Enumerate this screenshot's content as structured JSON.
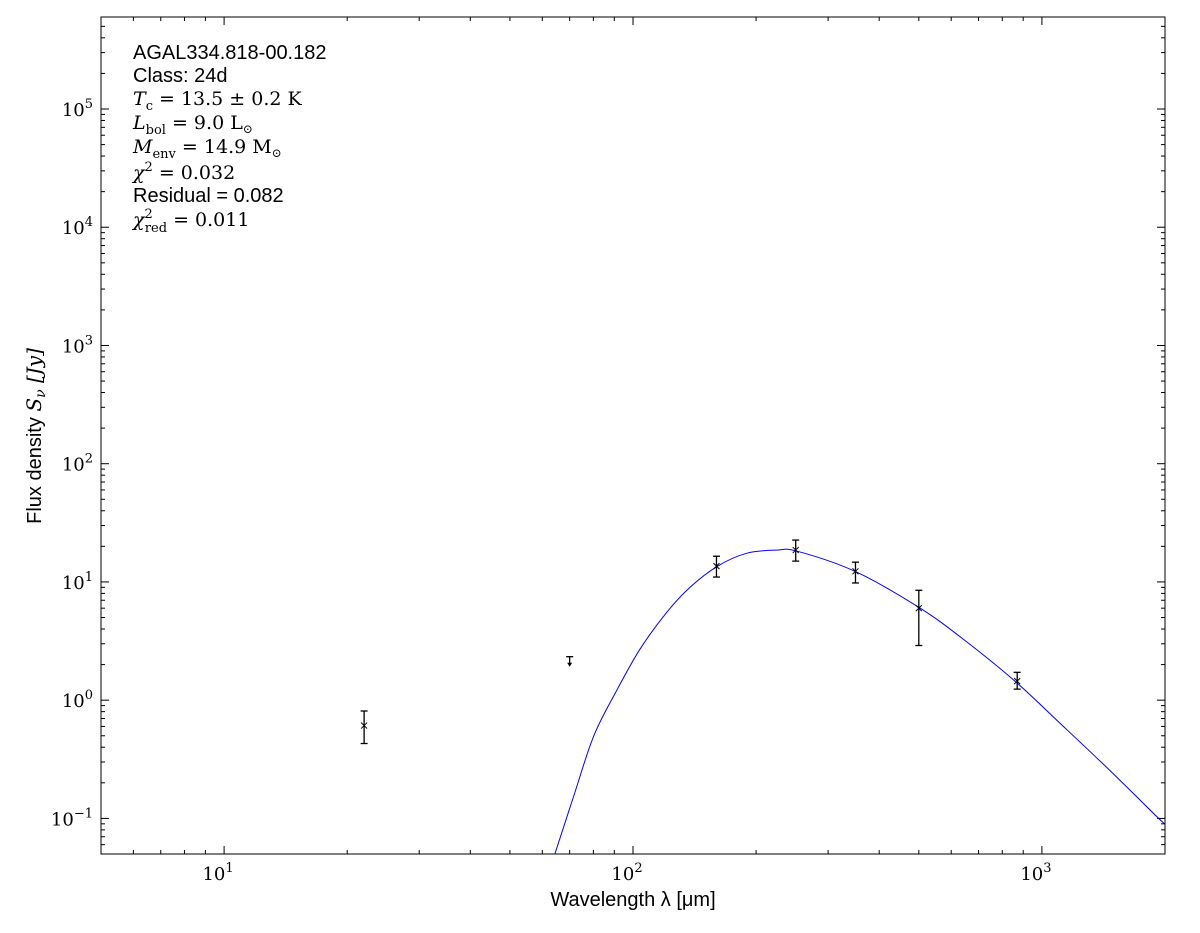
{
  "chart_data": {
    "type": "scatter",
    "xlabel": "Wavelength λ [μm]",
    "ylabel_text": "Flux density ",
    "ylabel_math": "S",
    "ylabel_sub": "ν",
    "ylabel_unit": " [Jy]",
    "x_scale": "log",
    "y_scale": "log",
    "xlim": [
      5,
      2000
    ],
    "ylim": [
      0.05,
      600000
    ],
    "grid": false,
    "x_ticks": [
      {
        "base": "10",
        "exp": "1",
        "value": 10
      },
      {
        "base": "10",
        "exp": "2",
        "value": 100
      },
      {
        "base": "10",
        "exp": "3",
        "value": 1000
      }
    ],
    "y_ticks": [
      {
        "base": "10",
        "exp": "−1",
        "value": 0.1
      },
      {
        "base": "10",
        "exp": "0",
        "value": 1
      },
      {
        "base": "10",
        "exp": "1",
        "value": 10
      },
      {
        "base": "10",
        "exp": "2",
        "value": 100
      },
      {
        "base": "10",
        "exp": "3",
        "value": 1000
      },
      {
        "base": "10",
        "exp": "4",
        "value": 10000
      },
      {
        "base": "10",
        "exp": "5",
        "value": 100000
      }
    ],
    "measurements": [
      {
        "x": 22,
        "y": 0.61,
        "y_low": 0.43,
        "y_high": 0.81
      },
      {
        "x": 160,
        "y": 13.6,
        "y_low": 11.0,
        "y_high": 16.5
      },
      {
        "x": 250,
        "y": 18.6,
        "y_low": 15.0,
        "y_high": 22.6
      },
      {
        "x": 350,
        "y": 12.3,
        "y_low": 9.8,
        "y_high": 14.7
      },
      {
        "x": 500,
        "y": 6.0,
        "y_low": 2.9,
        "y_high": 8.5
      },
      {
        "x": 870,
        "y": 1.45,
        "y_low": 1.24,
        "y_high": 1.72
      }
    ],
    "upper_limits": [
      {
        "x": 70,
        "y": 2.2
      }
    ],
    "model_curve": {
      "color": "#0000ff",
      "x": [
        64.4,
        71.6,
        80.2,
        91.6,
        104,
        121,
        138,
        161,
        190,
        225,
        252,
        349,
        495,
        628,
        859,
        1100,
        1455,
        1960,
        2000
      ],
      "y": [
        0.05,
        0.154,
        0.5,
        1.24,
        2.7,
        5.55,
        9.04,
        13.6,
        17.5,
        18.6,
        18.2,
        12.3,
        6.24,
        3.48,
        1.45,
        0.652,
        0.261,
        0.095,
        0.091
      ]
    },
    "annotations": [
      {
        "text": "AGAL334.818-00.182",
        "style": "sans"
      },
      {
        "text": "Class: 24d",
        "style": "sans"
      },
      {
        "text": "Tc = 13.5 ± 0.2 K",
        "style": "math",
        "main": "T",
        "sub": "c",
        "rest": " = 13.5 ± 0.2 K"
      },
      {
        "text": "Lbol = 9.0 L☉",
        "style": "math",
        "main": "L",
        "sub": "bol",
        "rest": " = 9.0 L",
        "rest_sub": "⊙"
      },
      {
        "text": "Menv = 14.9 M☉",
        "style": "math",
        "main": "M",
        "sub": "env",
        "rest": " = 14.9 M",
        "rest_sub": "⊙"
      },
      {
        "text": "χ2 = 0.032",
        "style": "math",
        "main": "χ",
        "sup": "2",
        "rest": " = 0.032"
      },
      {
        "text": "Residual = 0.082",
        "style": "sans"
      },
      {
        "text": "χ2red = 0.011",
        "style": "math",
        "main": "χ",
        "sup": "2",
        "sub": "red",
        "rest": " = 0.011"
      }
    ]
  }
}
